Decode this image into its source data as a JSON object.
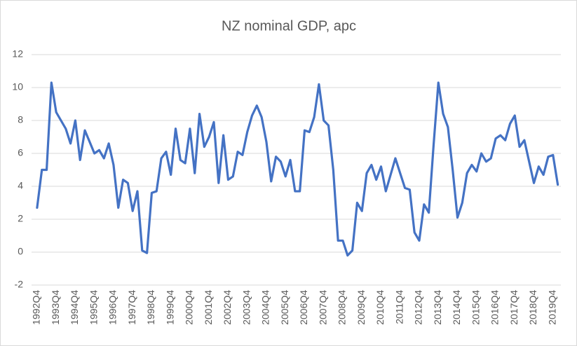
{
  "chart_data": {
    "type": "line",
    "title": "NZ nominal GDP, apc",
    "categories": [
      "1992Q4",
      null,
      null,
      null,
      "1993Q4",
      null,
      null,
      null,
      "1994Q4",
      null,
      null,
      null,
      "1995Q4",
      null,
      null,
      null,
      "1996Q4",
      null,
      null,
      null,
      "1997Q4",
      null,
      null,
      null,
      "1998Q4",
      null,
      null,
      null,
      "1999Q4",
      null,
      null,
      null,
      "2000Q4",
      null,
      null,
      null,
      "2001Q4",
      null,
      null,
      null,
      "2002Q4",
      null,
      null,
      null,
      "2003Q4",
      null,
      null,
      null,
      "2004Q4",
      null,
      null,
      null,
      "2005Q4",
      null,
      null,
      null,
      "2006Q4",
      null,
      null,
      null,
      "2007Q4",
      null,
      null,
      null,
      "2008Q4",
      null,
      null,
      null,
      "2009Q4",
      null,
      null,
      null,
      "2010Q4",
      null,
      null,
      null,
      "2011Q4",
      null,
      null,
      null,
      "2012Q4",
      null,
      null,
      null,
      "2013Q4",
      null,
      null,
      null,
      "2014Q4",
      null,
      null,
      null,
      "2015Q4",
      null,
      null,
      null,
      "2016Q4",
      null,
      null,
      null,
      "2017Q4",
      null,
      null,
      null,
      "2018Q4",
      null,
      null,
      null,
      "2019Q4",
      null
    ],
    "values": [
      2.7,
      5.0,
      5.0,
      10.3,
      8.5,
      8.0,
      7.5,
      6.6,
      8.0,
      5.6,
      7.4,
      6.7,
      6.0,
      6.2,
      5.7,
      6.6,
      5.3,
      2.7,
      4.4,
      4.2,
      2.5,
      3.7,
      0.1,
      -0.05,
      3.6,
      3.7,
      5.7,
      6.1,
      4.7,
      7.5,
      5.6,
      5.4,
      7.5,
      4.8,
      8.4,
      6.4,
      7.0,
      7.9,
      4.2,
      7.1,
      4.4,
      4.6,
      6.1,
      5.9,
      7.3,
      8.3,
      8.9,
      8.2,
      6.7,
      4.3,
      5.8,
      5.5,
      4.6,
      5.6,
      3.7,
      3.7,
      7.4,
      7.3,
      8.2,
      10.2,
      8.0,
      7.7,
      5.0,
      0.7,
      0.7,
      -0.2,
      0.1,
      3.0,
      2.5,
      4.8,
      5.3,
      4.4,
      5.2,
      3.7,
      4.7,
      5.7,
      4.8,
      3.9,
      3.8,
      1.2,
      0.7,
      2.9,
      2.4,
      6.5,
      10.3,
      8.4,
      7.6,
      5.0,
      2.1,
      3.0,
      4.8,
      5.3,
      4.9,
      6.0,
      5.5,
      5.7,
      6.9,
      7.1,
      6.8,
      7.8,
      8.3,
      6.4,
      6.8,
      5.5,
      4.2,
      5.2,
      4.7,
      5.8,
      5.9,
      4.1
    ],
    "color": "#4472c4",
    "ylim": [
      -2,
      12
    ],
    "yticks": [
      -2,
      0,
      2,
      4,
      6,
      8,
      10,
      12
    ],
    "grid": true
  }
}
